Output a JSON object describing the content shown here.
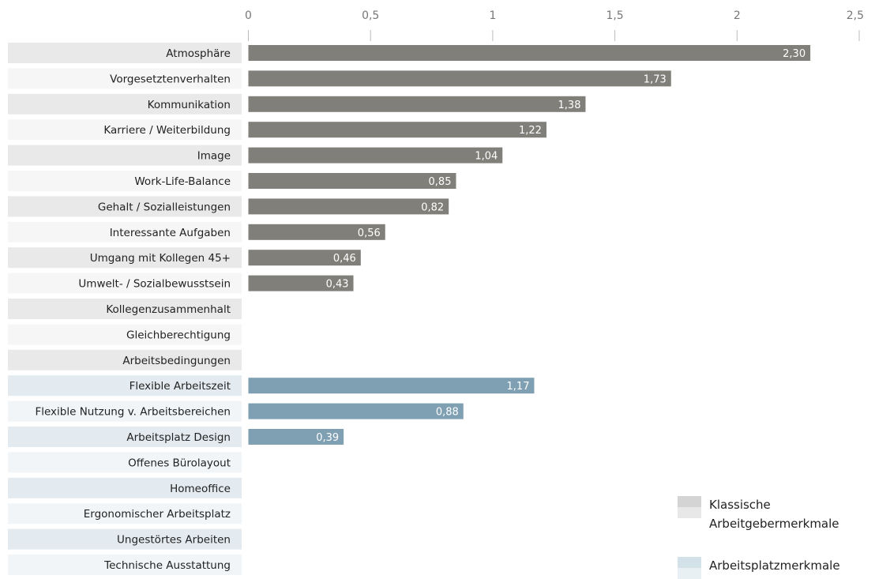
{
  "chart_data": {
    "type": "bar",
    "orientation": "horizontal",
    "xlim": [
      0,
      2.5
    ],
    "ticks": [
      {
        "value": 0,
        "label": "0"
      },
      {
        "value": 0.5,
        "label": "0,5"
      },
      {
        "value": 1,
        "label": "1"
      },
      {
        "value": 1.5,
        "label": "1,5"
      },
      {
        "value": 2,
        "label": "2"
      },
      {
        "value": 2.5,
        "label": "2,5"
      }
    ],
    "categories": [
      {
        "label": "Atmosphäre",
        "group": "klassisch",
        "value": 2.3,
        "value_label": "2,30"
      },
      {
        "label": "Vorgesetztenverhalten",
        "group": "klassisch",
        "value": 1.73,
        "value_label": "1,73"
      },
      {
        "label": "Kommunikation",
        "group": "klassisch",
        "value": 1.38,
        "value_label": "1,38"
      },
      {
        "label": "Karriere / Weiterbildung",
        "group": "klassisch",
        "value": 1.22,
        "value_label": "1,22"
      },
      {
        "label": "Image",
        "group": "klassisch",
        "value": 1.04,
        "value_label": "1,04"
      },
      {
        "label": "Work-Life-Balance",
        "group": "klassisch",
        "value": 0.85,
        "value_label": "0,85"
      },
      {
        "label": "Gehalt / Sozialleistungen",
        "group": "klassisch",
        "value": 0.82,
        "value_label": "0,82"
      },
      {
        "label": "Interessante Aufgaben",
        "group": "klassisch",
        "value": 0.56,
        "value_label": "0,56"
      },
      {
        "label": "Umgang mit Kollegen 45+",
        "group": "klassisch",
        "value": 0.46,
        "value_label": "0,46"
      },
      {
        "label": "Umwelt- / Sozialbewusstsein",
        "group": "klassisch",
        "value": 0.43,
        "value_label": "0,43"
      },
      {
        "label": "Kollegenzusammenhalt",
        "group": "klassisch",
        "value": null,
        "value_label": ""
      },
      {
        "label": "Gleichberechtigung",
        "group": "klassisch",
        "value": null,
        "value_label": ""
      },
      {
        "label": "Arbeitsbedingungen",
        "group": "klassisch",
        "value": null,
        "value_label": ""
      },
      {
        "label": "Flexible Arbeitszeit",
        "group": "arbeitsplatz",
        "value": 1.17,
        "value_label": "1,17"
      },
      {
        "label": "Flexible Nutzung v. Arbeitsbereichen",
        "group": "arbeitsplatz",
        "value": 0.88,
        "value_label": "0,88"
      },
      {
        "label": "Arbeitsplatz Design",
        "group": "arbeitsplatz",
        "value": 0.39,
        "value_label": "0,39"
      },
      {
        "label": "Offenes Bürolayout",
        "group": "arbeitsplatz",
        "value": null,
        "value_label": ""
      },
      {
        "label": "Homeoffice",
        "group": "arbeitsplatz",
        "value": null,
        "value_label": ""
      },
      {
        "label": "Ergonomischer Arbeitsplatz",
        "group": "arbeitsplatz",
        "value": null,
        "value_label": ""
      },
      {
        "label": "Ungestörtes Arbeiten",
        "group": "arbeitsplatz",
        "value": null,
        "value_label": ""
      },
      {
        "label": "Technische Ausstattung",
        "group": "arbeitsplatz",
        "value": null,
        "value_label": ""
      }
    ],
    "groups": {
      "klassisch": {
        "bar_color": "#807f79",
        "row_colors": [
          "#e9e9e9",
          "#f6f6f6"
        ]
      },
      "arbeitsplatz": {
        "bar_color": "#7f9fb2",
        "row_colors": [
          "#e3ebf0",
          "#f1f5f8"
        ]
      }
    },
    "legend": [
      {
        "label_lines": [
          "Klassische",
          "Arbeitgebermerkmale"
        ],
        "colors": [
          "#d4d4d4",
          "#e8e8e8"
        ]
      },
      {
        "label_lines": [
          "Arbeitsplatzmerkmale"
        ],
        "colors": [
          "#d3e1e9",
          "#e9f0f4"
        ]
      }
    ],
    "legend_placement": "bottom-right",
    "grid": false
  }
}
